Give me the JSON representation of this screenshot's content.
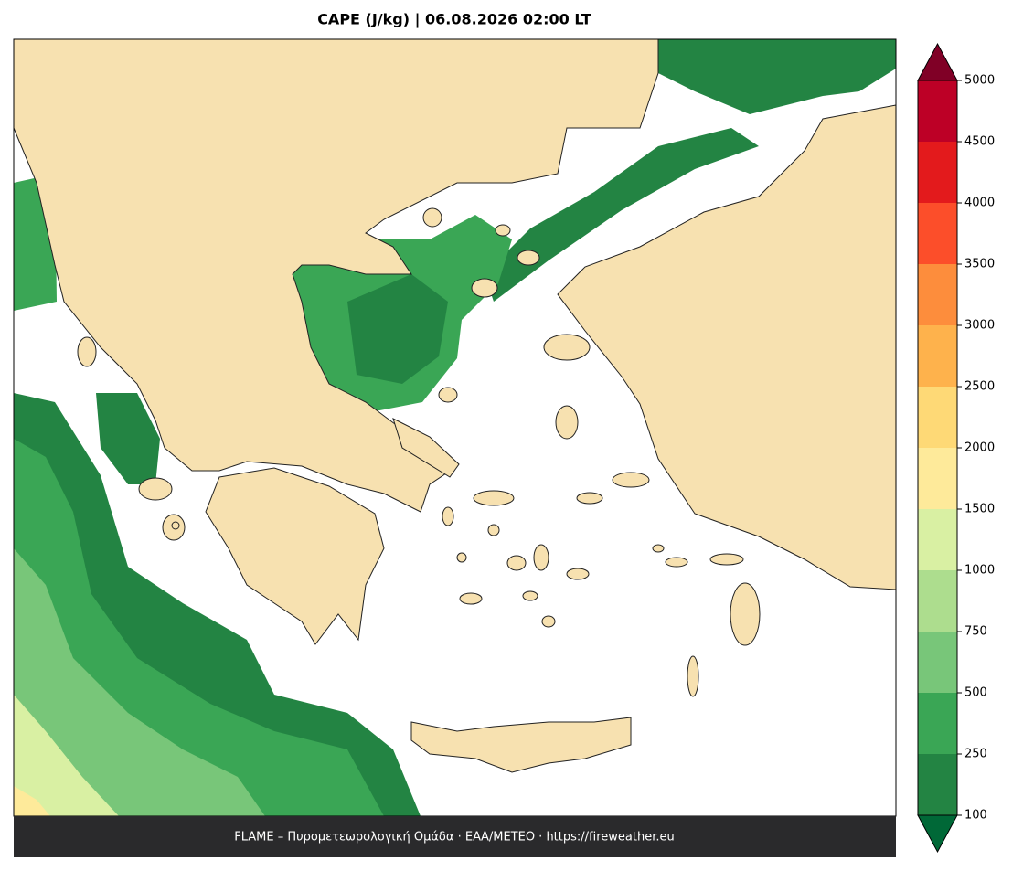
{
  "title": "CAPE (J/kg)  |  06.08.2026 02:00 LT",
  "footer": "FLAME – Πυρομετεωρολογική Ομάδα · ΕΑΑ/METEO · https://fireweather.eu",
  "colorbar": {
    "levels": [
      100,
      250,
      500,
      750,
      1000,
      1500,
      2000,
      2500,
      3000,
      3500,
      4000,
      4500,
      5000
    ],
    "colors": [
      "#238443",
      "#3aa655",
      "#78c679",
      "#addd8e",
      "#d9f0a3",
      "#feea9a",
      "#fed976",
      "#feb24c",
      "#fd8d3c",
      "#fc4e2a",
      "#e31a1c",
      "#bd0026"
    ],
    "under_color": "#006837",
    "over_color": "#800026"
  }
}
